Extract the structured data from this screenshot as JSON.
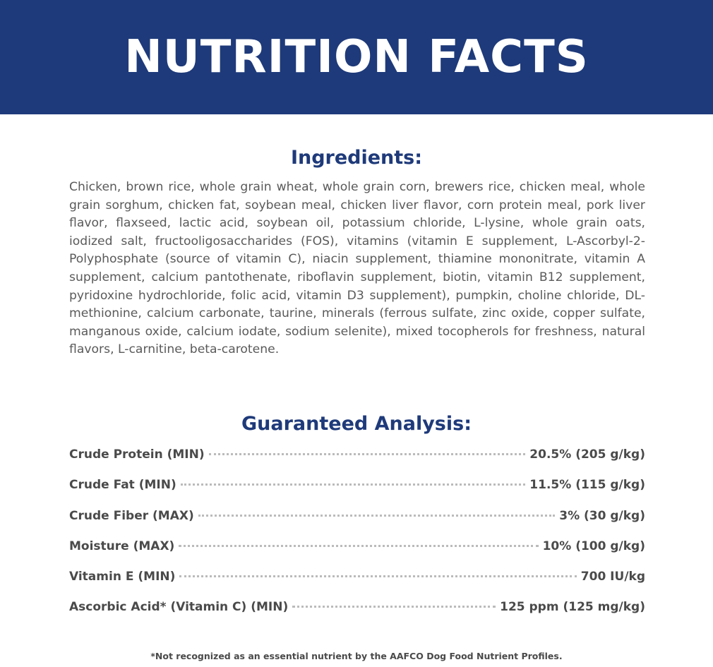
{
  "header": {
    "title": "NUTRITION FACTS"
  },
  "ingredients": {
    "heading": "Ingredients:",
    "text": "Chicken, brown rice, whole grain wheat, whole grain corn, brewers rice, chicken meal, whole grain sorghum, chicken fat, soybean meal, chicken liver flavor, corn protein meal, pork liver flavor, flaxseed, lactic acid, soybean oil, potassium chloride, L-lysine, whole grain oats, iodized salt, fructooligosaccharides (FOS), vitamins (vitamin E supplement, L-Ascorbyl-2-Polyphosphate (source of vitamin C), niacin supplement, thiamine mononitrate, vitamin A supplement, calcium pantothenate, riboflavin supplement, biotin, vitamin B12 supplement, pyridoxine hydrochloride, folic acid, vitamin D3 supplement), pumpkin, choline chloride, DL-methionine, calcium carbonate, taurine, minerals (ferrous sulfate, zinc oxide, copper sulfate, manganous oxide, calcium iodate, sodium selenite), mixed tocopherols for freshness, natural flavors, L-carnitine, beta-carotene."
  },
  "analysis": {
    "heading": "Guaranteed Analysis:",
    "rows": [
      {
        "label": "Crude Protein (MIN)",
        "value": "20.5% (205 g/kg)"
      },
      {
        "label": "Crude Fat (MIN)",
        "value": "11.5% (115 g/kg)"
      },
      {
        "label": "Crude Fiber (MAX)",
        "value": "3% (30 g/kg)"
      },
      {
        "label": "Moisture (MAX)",
        "value": "10% (100 g/kg)"
      },
      {
        "label": "Vitamin E (MIN)",
        "value": "700 IU/kg"
      },
      {
        "label": "Ascorbic Acid* (Vitamin C) (MIN)",
        "value": "125 ppm (125 mg/kg)"
      }
    ]
  },
  "footnote": "*Not recognized as an essential nutrient by the AAFCO Dog Food Nutrient Profiles."
}
